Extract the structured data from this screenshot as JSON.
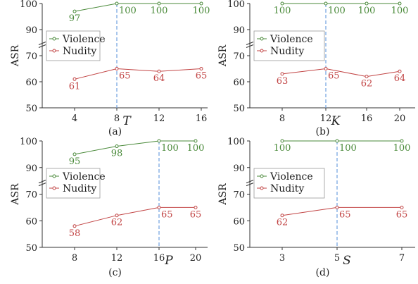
{
  "colors": {
    "violence": "#4a8a3a",
    "nudity": "#c24545",
    "highlight": "#6fa0e0",
    "axis": "#333333",
    "legend_border": "#9a9a9a"
  },
  "chart_data": [
    {
      "type": "line",
      "panel_label": "(a)",
      "xlabel": "T",
      "ylabel": "ASR",
      "categories": [
        "4",
        "8",
        "12",
        "16"
      ],
      "ylim": [
        50,
        100
      ],
      "yticks": [
        "50",
        "60",
        "70",
        "90",
        "100"
      ],
      "highlight": "8",
      "legend_position": "left-middle",
      "series": [
        {
          "name": "Violence",
          "values": [
            97,
            100,
            100,
            100
          ]
        },
        {
          "name": "Nudity",
          "values": [
            61,
            65,
            64,
            65
          ]
        }
      ]
    },
    {
      "type": "line",
      "panel_label": "(b)",
      "xlabel": "K",
      "ylabel": "ASR",
      "categories": [
        "8",
        "12",
        "16",
        "20"
      ],
      "ylim": [
        50,
        100
      ],
      "yticks": [
        "50",
        "60",
        "70",
        "90",
        "100"
      ],
      "highlight": "12",
      "legend_position": "top-middle",
      "series": [
        {
          "name": "Violence",
          "values": [
            100,
            100,
            100,
            100
          ]
        },
        {
          "name": "Nudity",
          "values": [
            63,
            65,
            62,
            64
          ]
        }
      ]
    },
    {
      "type": "line",
      "panel_label": "(c)",
      "xlabel": "P",
      "ylabel": "ASR",
      "categories": [
        "8",
        "12",
        "16",
        "20"
      ],
      "ylim": [
        50,
        100
      ],
      "yticks": [
        "50",
        "60",
        "70",
        "90",
        "100"
      ],
      "highlight": "16",
      "legend_position": "top-middle",
      "series": [
        {
          "name": "Violence",
          "values": [
            95,
            98,
            100,
            100
          ]
        },
        {
          "name": "Nudity",
          "values": [
            58,
            62,
            65,
            65
          ]
        }
      ]
    },
    {
      "type": "line",
      "panel_label": "(d)",
      "xlabel": "S",
      "ylabel": "ASR",
      "categories": [
        "3",
        "5",
        "7"
      ],
      "ylim": [
        50,
        100
      ],
      "yticks": [
        "50",
        "60",
        "70",
        "90",
        "100"
      ],
      "highlight": "5",
      "legend_position": "top-left",
      "series": [
        {
          "name": "Violence",
          "values": [
            100,
            100,
            100
          ]
        },
        {
          "name": "Nudity",
          "values": [
            62,
            65,
            65
          ]
        }
      ]
    }
  ]
}
